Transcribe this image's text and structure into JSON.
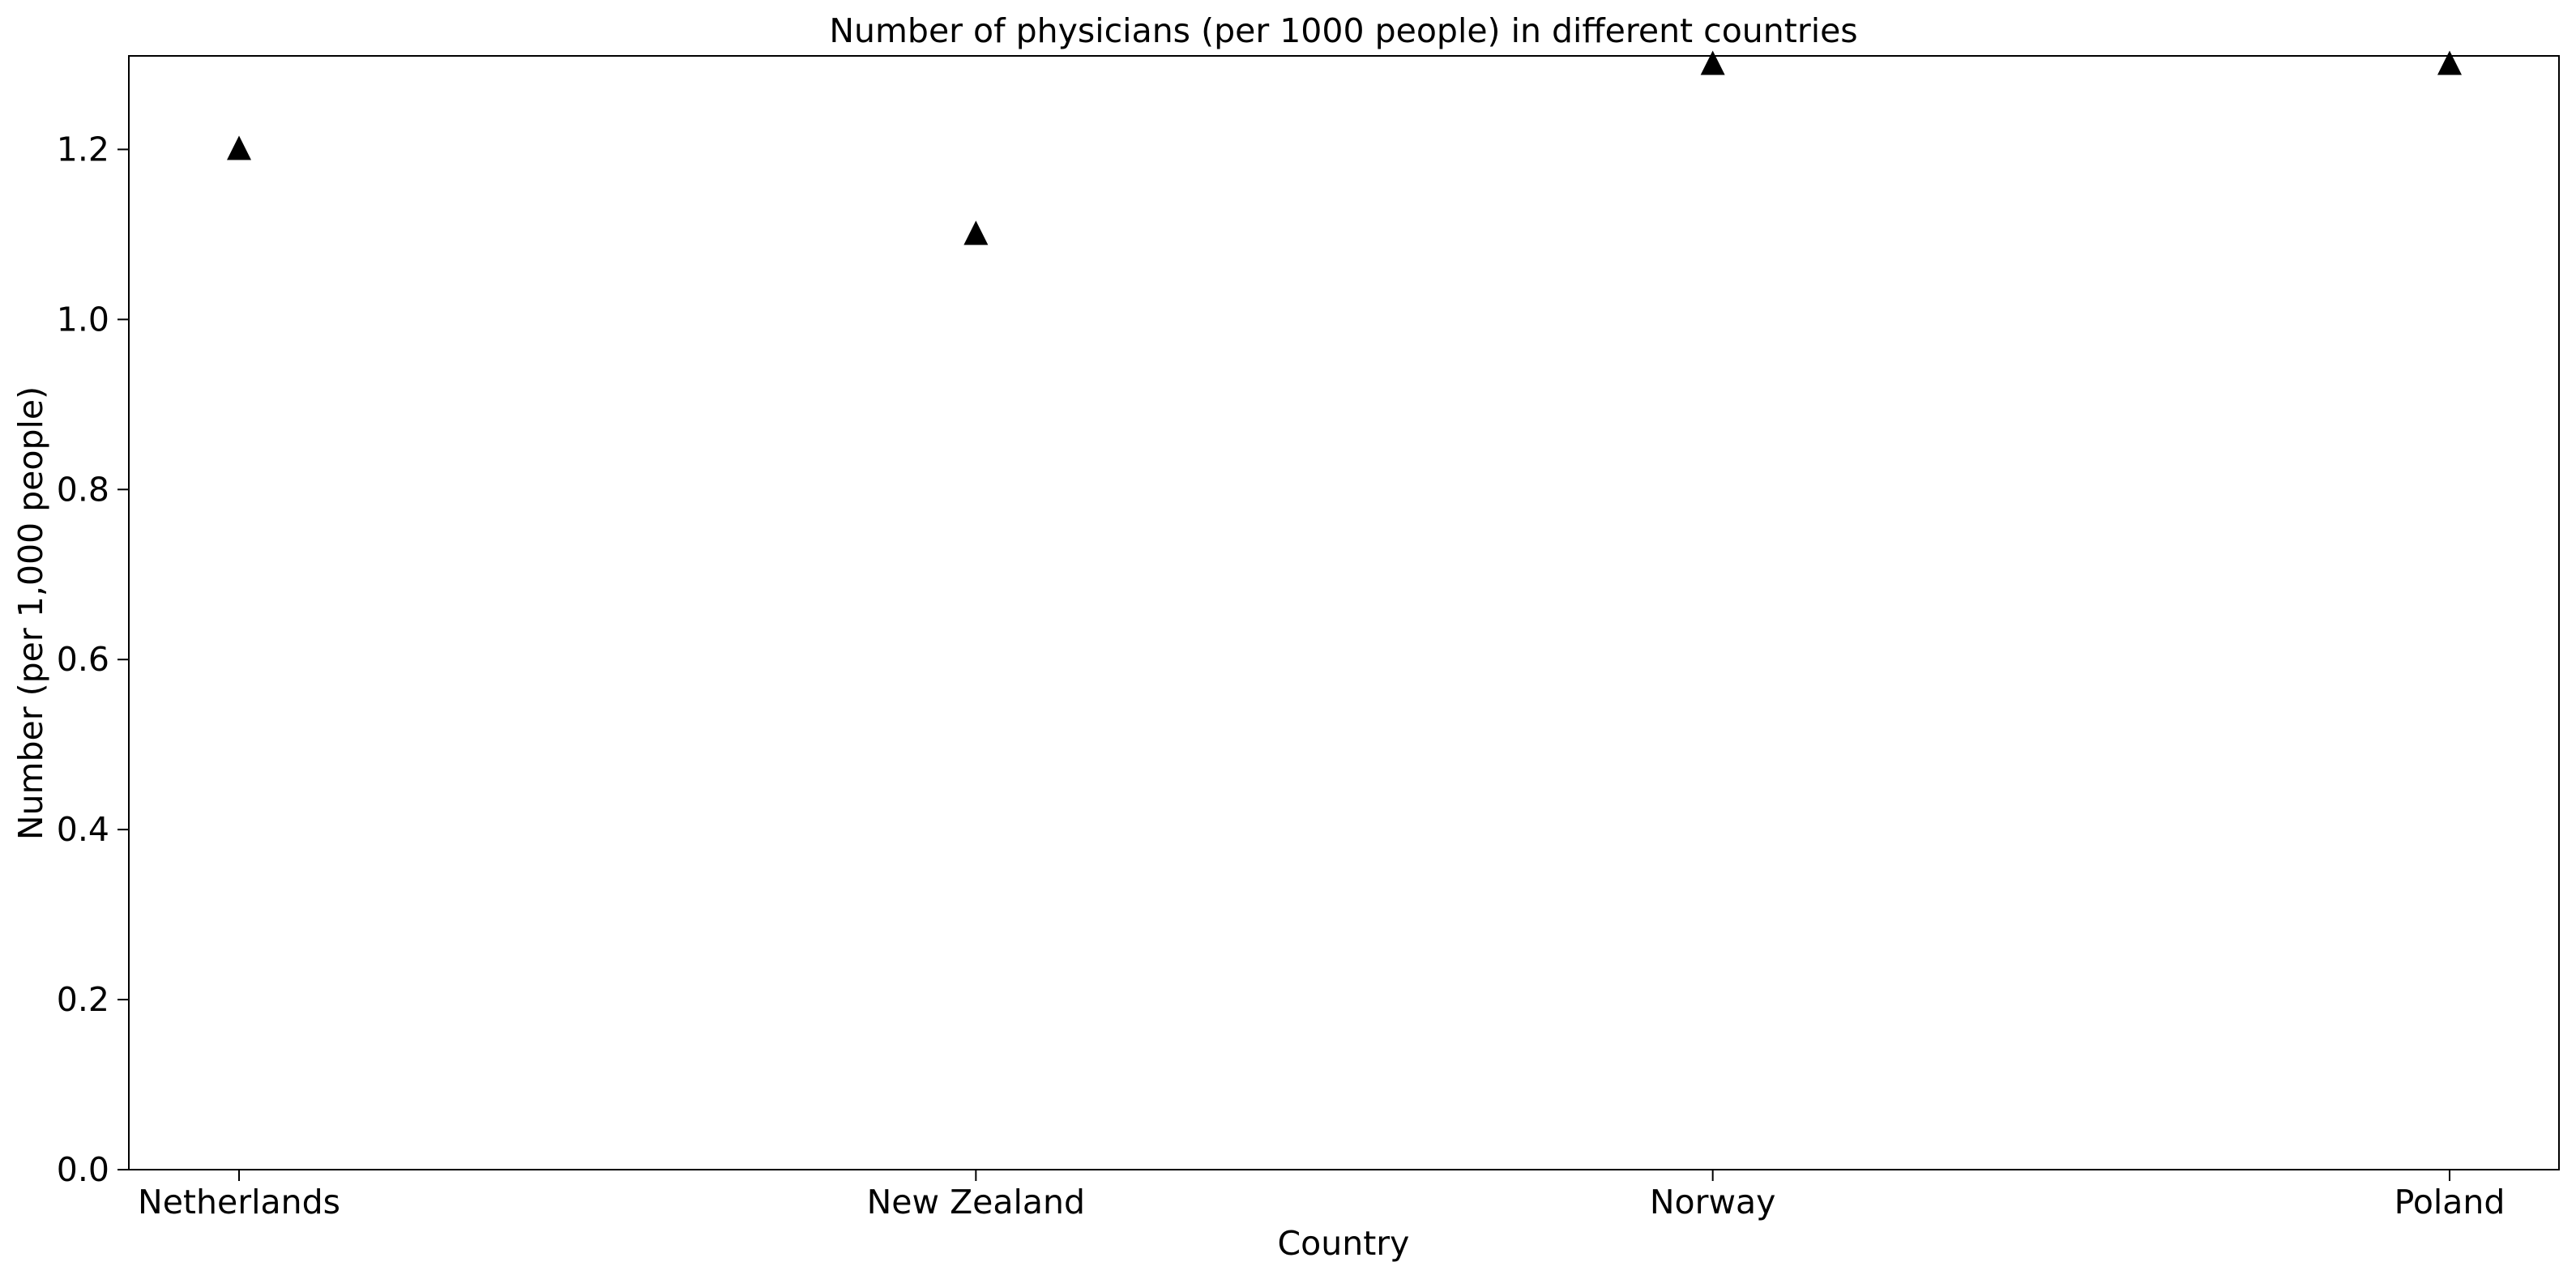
{
  "chart_data": {
    "type": "scatter",
    "title": "Number of physicians (per 1000 people) in different countries",
    "xlabel": "Country",
    "ylabel": "Number (per 1,000 people)",
    "categories": [
      "Netherlands",
      "New Zealand",
      "Norway",
      "Poland"
    ],
    "series": [
      {
        "values": [
          1.2,
          1.1,
          1.3,
          1.3
        ],
        "marker": "triangle-up",
        "color": "#000000"
      }
    ],
    "ylim": [
      0.0,
      1.31
    ],
    "yticks": [
      {
        "value": 0.0,
        "label": "0.0"
      },
      {
        "value": 0.2,
        "label": "0.2"
      },
      {
        "value": 0.4,
        "label": "0.4"
      },
      {
        "value": 0.6,
        "label": "0.6"
      },
      {
        "value": 0.8,
        "label": "0.8"
      },
      {
        "value": 1.0,
        "label": "1.0"
      },
      {
        "value": 1.2,
        "label": "1.2"
      }
    ],
    "grid": false,
    "legend": "none"
  }
}
